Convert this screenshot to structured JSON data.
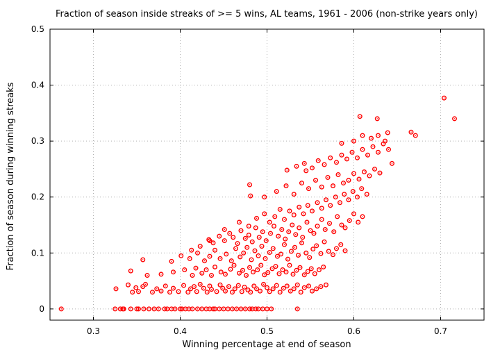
{
  "chart_data": {
    "type": "scatter",
    "title": "Fraction of season inside streaks of >= 5 wins, AL teams, 1961 - 2006 (non-strike years only)",
    "xlabel": "Winning percentage at end of season",
    "ylabel": "Fraction of season during winning streaks",
    "xlim": [
      0.25,
      0.75
    ],
    "ylim": [
      -0.02,
      0.5
    ],
    "x_ticks": [
      "0.3",
      "0.4",
      "0.5",
      "0.6",
      "0.7"
    ],
    "y_ticks": [
      "0",
      "0.1",
      "0.2",
      "0.3",
      "0.4",
      "0.5"
    ],
    "grid": true,
    "marker_color": "#ff0000",
    "series": [
      {
        "x": [
          0.263,
          0.325,
          0.331,
          0.334,
          0.335,
          0.343,
          0.35,
          0.352,
          0.358,
          0.364,
          0.37,
          0.375,
          0.382,
          0.385,
          0.39,
          0.394,
          0.4,
          0.402,
          0.406,
          0.41,
          0.414,
          0.42,
          0.425,
          0.43,
          0.434,
          0.438,
          0.44,
          0.445,
          0.45,
          0.455,
          0.46,
          0.465,
          0.47,
          0.475,
          0.48,
          0.483,
          0.487,
          0.49,
          0.495,
          0.5,
          0.505,
          0.535,
          0.326,
          0.34,
          0.345,
          0.349,
          0.352,
          0.357,
          0.36,
          0.368,
          0.373,
          0.378,
          0.383,
          0.388,
          0.392,
          0.398,
          0.404,
          0.409,
          0.412,
          0.416,
          0.419,
          0.423,
          0.427,
          0.431,
          0.434,
          0.436,
          0.442,
          0.446,
          0.449,
          0.452,
          0.456,
          0.46,
          0.463,
          0.467,
          0.471,
          0.474,
          0.478,
          0.481,
          0.485,
          0.488,
          0.492,
          0.496,
          0.5,
          0.503,
          0.507,
          0.511,
          0.515,
          0.519,
          0.523,
          0.527,
          0.531,
          0.535,
          0.539,
          0.543,
          0.548,
          0.552,
          0.557,
          0.562,
          0.568,
          0.343,
          0.362,
          0.378,
          0.392,
          0.405,
          0.414,
          0.418,
          0.425,
          0.43,
          0.436,
          0.44,
          0.447,
          0.452,
          0.458,
          0.462,
          0.468,
          0.472,
          0.476,
          0.48,
          0.484,
          0.489,
          0.493,
          0.497,
          0.501,
          0.506,
          0.51,
          0.514,
          0.518,
          0.522,
          0.526,
          0.53,
          0.534,
          0.538,
          0.543,
          0.547,
          0.551,
          0.555,
          0.56,
          0.565,
          0.357,
          0.39,
          0.401,
          0.411,
          0.42,
          0.428,
          0.434,
          0.44,
          0.446,
          0.453,
          0.459,
          0.464,
          0.469,
          0.473,
          0.477,
          0.482,
          0.486,
          0.49,
          0.494,
          0.498,
          0.503,
          0.507,
          0.512,
          0.516,
          0.52,
          0.524,
          0.528,
          0.532,
          0.536,
          0.54,
          0.545,
          0.549,
          0.553,
          0.557,
          0.562,
          0.566,
          0.571,
          0.576,
          0.58,
          0.585,
          0.59,
          0.413,
          0.423,
          0.433,
          0.438,
          0.445,
          0.451,
          0.457,
          0.461,
          0.466,
          0.47,
          0.475,
          0.479,
          0.483,
          0.487,
          0.491,
          0.495,
          0.499,
          0.504,
          0.508,
          0.513,
          0.517,
          0.521,
          0.525,
          0.529,
          0.533,
          0.537,
          0.541,
          0.546,
          0.55,
          0.554,
          0.558,
          0.563,
          0.567,
          0.572,
          0.577,
          0.581,
          0.586,
          0.59,
          0.595,
          0.6,
          0.605,
          0.61,
          0.434,
          0.451,
          0.468,
          0.479,
          0.488,
          0.497,
          0.503,
          0.509,
          0.515,
          0.52,
          0.526,
          0.531,
          0.537,
          0.542,
          0.547,
          0.552,
          0.558,
          0.563,
          0.568,
          0.573,
          0.579,
          0.584,
          0.589,
          0.594,
          0.599,
          0.604,
          0.609,
          0.615,
          0.48,
          0.497,
          0.511,
          0.522,
          0.531,
          0.54,
          0.548,
          0.556,
          0.563,
          0.57,
          0.576,
          0.582,
          0.588,
          0.594,
          0.6,
          0.606,
          0.612,
          0.618,
          0.624,
          0.63,
          0.481,
          0.523,
          0.534,
          0.543,
          0.552,
          0.559,
          0.566,
          0.573,
          0.58,
          0.586,
          0.592,
          0.598,
          0.604,
          0.61,
          0.616,
          0.622,
          0.628,
          0.634,
          0.64,
          0.545,
          0.586,
          0.6,
          0.61,
          0.62,
          0.628,
          0.636,
          0.644,
          0.607,
          0.627,
          0.639,
          0.666,
          0.671,
          0.704,
          0.716
        ],
        "y": [
          0.0,
          0.0,
          0.0,
          0.0,
          0.0,
          0.0,
          0.0,
          0.0,
          0.0,
          0.0,
          0.0,
          0.0,
          0.0,
          0.0,
          0.0,
          0.0,
          0.0,
          0.0,
          0.0,
          0.0,
          0.0,
          0.0,
          0.0,
          0.0,
          0.0,
          0.0,
          0.0,
          0.0,
          0.0,
          0.0,
          0.0,
          0.0,
          0.0,
          0.0,
          0.0,
          0.0,
          0.0,
          0.0,
          0.0,
          0.0,
          0.0,
          0.0,
          0.036,
          0.043,
          0.03,
          0.038,
          0.031,
          0.04,
          0.044,
          0.03,
          0.036,
          0.032,
          0.041,
          0.03,
          0.037,
          0.031,
          0.042,
          0.03,
          0.036,
          0.04,
          0.031,
          0.044,
          0.037,
          0.03,
          0.041,
          0.035,
          0.031,
          0.043,
          0.037,
          0.032,
          0.04,
          0.03,
          0.036,
          0.042,
          0.031,
          0.039,
          0.034,
          0.03,
          0.041,
          0.036,
          0.032,
          0.044,
          0.038,
          0.031,
          0.036,
          0.042,
          0.03,
          0.037,
          0.041,
          0.032,
          0.036,
          0.043,
          0.03,
          0.038,
          0.041,
          0.032,
          0.036,
          0.04,
          0.043,
          0.068,
          0.06,
          0.062,
          0.066,
          0.07,
          0.06,
          0.073,
          0.064,
          0.07,
          0.06,
          0.075,
          0.066,
          0.062,
          0.071,
          0.078,
          0.064,
          0.069,
          0.06,
          0.074,
          0.066,
          0.07,
          0.078,
          0.061,
          0.065,
          0.072,
          0.076,
          0.063,
          0.07,
          0.066,
          0.078,
          0.062,
          0.069,
          0.074,
          0.061,
          0.067,
          0.072,
          0.063,
          0.07,
          0.075,
          0.088,
          0.085,
          0.095,
          0.09,
          0.1,
          0.086,
          0.094,
          0.105,
          0.09,
          0.098,
          0.086,
          0.108,
          0.093,
          0.1,
          0.11,
          0.088,
          0.104,
          0.095,
          0.112,
          0.09,
          0.101,
          0.108,
          0.094,
          0.098,
          0.115,
          0.089,
          0.103,
          0.11,
          0.096,
          0.118,
          0.1,
          0.092,
          0.107,
          0.113,
          0.099,
          0.12,
          0.103,
          0.097,
          0.108,
          0.115,
          0.104,
          0.105,
          0.112,
          0.124,
          0.118,
          0.13,
          0.122,
          0.135,
          0.128,
          0.117,
          0.14,
          0.126,
          0.132,
          0.12,
          0.145,
          0.128,
          0.138,
          0.122,
          0.135,
          0.148,
          0.13,
          0.142,
          0.125,
          0.138,
          0.15,
          0.133,
          0.145,
          0.128,
          0.155,
          0.14,
          0.135,
          0.148,
          0.16,
          0.142,
          0.153,
          0.138,
          0.165,
          0.15,
          0.145,
          0.158,
          0.17,
          0.155,
          0.165,
          0.122,
          0.142,
          0.155,
          0.148,
          0.162,
          0.17,
          0.155,
          0.165,
          0.178,
          0.16,
          0.175,
          0.168,
          0.182,
          0.17,
          0.185,
          0.175,
          0.19,
          0.18,
          0.195,
          0.185,
          0.2,
          0.19,
          0.205,
          0.195,
          0.21,
          0.2,
          0.215,
          0.205,
          0.222,
          0.2,
          0.21,
          0.22,
          0.205,
          0.225,
          0.215,
          0.23,
          0.218,
          0.235,
          0.22,
          0.24,
          0.225,
          0.23,
          0.242,
          0.232,
          0.245,
          0.238,
          0.25,
          0.243,
          0.202,
          0.248,
          0.255,
          0.26,
          0.252,
          0.265,
          0.258,
          0.27,
          0.262,
          0.275,
          0.268,
          0.28,
          0.27,
          0.285,
          0.275,
          0.29,
          0.28,
          0.295,
          0.285,
          0.247,
          0.296,
          0.3,
          0.31,
          0.305,
          0.31,
          0.3,
          0.26,
          0.344,
          0.34,
          0.315,
          0.316,
          0.31,
          0.377,
          0.34
        ]
      }
    ]
  }
}
